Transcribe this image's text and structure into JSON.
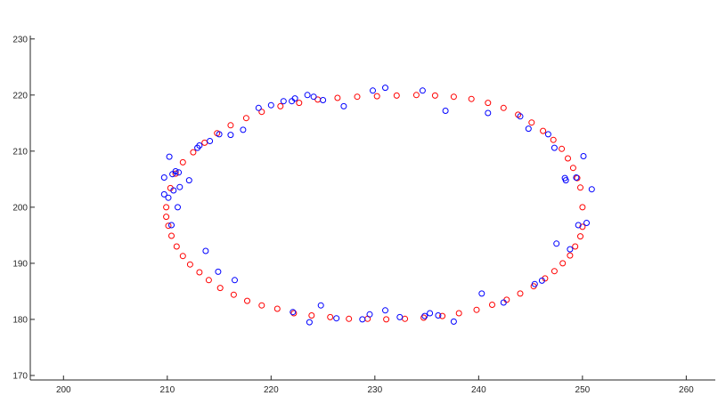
{
  "chart_data": {
    "type": "scatter",
    "title": "",
    "xlabel": "",
    "ylabel": "",
    "xlim": [
      196.8,
      262.8
    ],
    "ylim": [
      169.2,
      230.6
    ],
    "xticks": [
      200,
      210,
      220,
      230,
      240,
      250,
      260
    ],
    "yticks": [
      170,
      180,
      190,
      200,
      210,
      220,
      230
    ],
    "grid": false,
    "legend": "none",
    "series": [
      {
        "color": "#ff0000",
        "marker": "circle-open",
        "x": [
          250.0,
          249.8,
          249.5,
          249.1,
          248.6,
          248.0,
          247.2,
          246.2,
          245.1,
          243.8,
          242.4,
          240.9,
          239.3,
          237.6,
          235.8,
          234.0,
          232.1,
          230.2,
          228.3,
          226.4,
          224.5,
          222.7,
          220.9,
          219.1,
          217.6,
          216.1,
          214.8,
          213.6,
          212.5,
          211.5,
          210.8,
          210.3,
          209.9,
          209.9,
          210.1,
          210.4,
          210.9,
          211.5,
          212.2,
          213.1,
          214.0,
          215.1,
          216.4,
          217.7,
          219.1,
          220.6,
          222.2,
          223.9,
          225.7,
          227.5,
          229.3,
          231.1,
          232.9,
          234.7,
          236.5,
          238.1,
          239.8,
          241.3,
          242.7,
          244.0,
          245.3,
          246.4,
          247.3,
          248.1,
          248.8,
          249.3,
          249.8,
          250.0
        ],
        "y": [
          200.0,
          203.5,
          205.2,
          207.0,
          208.7,
          210.4,
          212.0,
          213.6,
          215.1,
          216.5,
          217.7,
          218.6,
          219.3,
          219.7,
          219.9,
          220.0,
          219.9,
          219.8,
          219.7,
          219.5,
          219.2,
          218.6,
          218.0,
          217.0,
          215.9,
          214.6,
          213.2,
          211.5,
          209.8,
          208.0,
          206.0,
          203.4,
          200.0,
          198.3,
          196.7,
          194.9,
          193.0,
          191.3,
          189.8,
          188.4,
          187.0,
          185.6,
          184.4,
          183.3,
          182.5,
          181.9,
          181.1,
          180.7,
          180.4,
          180.1,
          180.1,
          180.0,
          180.1,
          180.3,
          180.6,
          181.1,
          181.7,
          182.6,
          183.5,
          184.6,
          185.9,
          187.3,
          188.6,
          190.0,
          191.4,
          193.0,
          194.8,
          196.5
        ]
      },
      {
        "color": "#0000ff",
        "marker": "circle-open",
        "x": [
          210.2,
          210.8,
          211.2,
          212.9,
          214.1,
          215.0,
          216.1,
          217.3,
          218.8,
          220.0,
          221.2,
          222.0,
          222.3,
          223.5,
          224.1,
          225.0,
          227.0,
          229.8,
          231.0,
          234.6,
          236.8,
          240.9,
          244.0,
          244.8,
          246.7,
          247.3,
          248.3,
          248.4,
          249.4,
          250.1,
          250.9,
          250.4,
          249.6,
          248.8,
          247.5,
          246.1,
          245.4,
          242.4,
          240.3,
          237.6,
          236.1,
          235.3,
          234.8,
          232.4,
          231.0,
          229.5,
          228.8,
          226.3,
          224.8,
          223.7,
          222.1,
          216.5,
          214.9,
          213.7,
          211.0,
          210.4,
          210.1,
          210.6,
          209.7,
          209.7,
          210.5,
          211.1,
          212.1,
          213.1
        ],
        "y": [
          209.0,
          206.4,
          203.6,
          210.6,
          211.8,
          213.0,
          212.9,
          213.8,
          217.7,
          218.2,
          218.9,
          218.9,
          219.4,
          220.0,
          219.7,
          219.1,
          218.0,
          220.8,
          221.3,
          220.8,
          217.2,
          216.8,
          216.2,
          214.0,
          213.0,
          210.6,
          205.2,
          204.8,
          205.3,
          209.1,
          203.2,
          197.2,
          196.8,
          192.5,
          193.5,
          186.9,
          186.3,
          183.0,
          184.6,
          179.6,
          180.7,
          181.1,
          180.6,
          180.4,
          181.6,
          180.9,
          180.0,
          180.2,
          182.5,
          179.5,
          181.3,
          187.0,
          188.5,
          192.2,
          200.0,
          196.8,
          201.7,
          203.0,
          202.3,
          205.3,
          205.9,
          206.2,
          204.8,
          211.0
        ]
      }
    ]
  }
}
